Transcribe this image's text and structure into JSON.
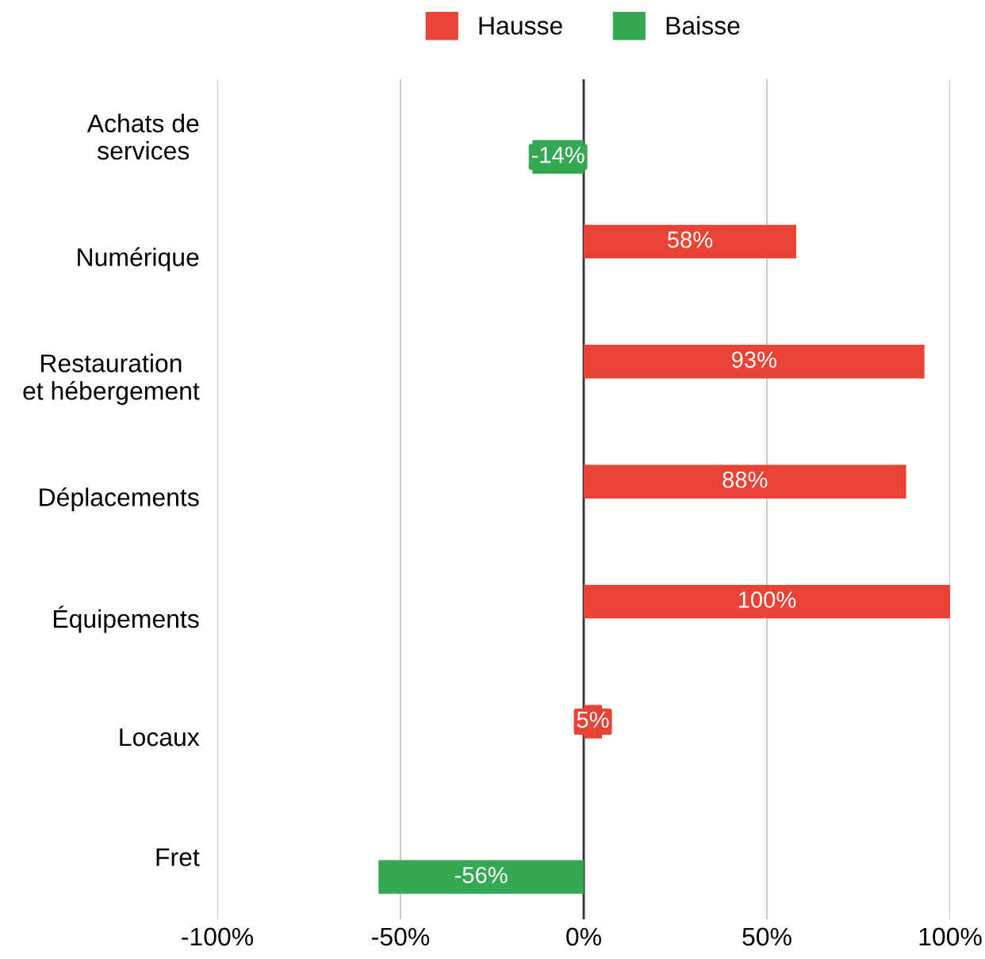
{
  "chart_data": {
    "type": "bar",
    "orientation": "horizontal",
    "categories": [
      "Achats de services",
      "Numérique",
      "Restauration et hébergement",
      "Déplacements",
      "Équipements",
      "Locaux",
      "Fret"
    ],
    "series": [
      {
        "name": "Hausse",
        "color": "#ea4335",
        "values": [
          null,
          58,
          93,
          88,
          100,
          5,
          null
        ],
        "value_labels": [
          null,
          "58%",
          "93%",
          "88%",
          "100%",
          "5%",
          null
        ]
      },
      {
        "name": "Baisse",
        "color": "#34a853",
        "values": [
          -14,
          null,
          null,
          null,
          null,
          null,
          -56
        ],
        "value_labels": [
          "-14%",
          null,
          null,
          null,
          null,
          null,
          "-56%"
        ]
      }
    ],
    "xlim": [
      -100,
      100
    ],
    "xticks": [
      {
        "value": -100,
        "label": "-100%"
      },
      {
        "value": -50,
        "label": "-50%"
      },
      {
        "value": 0,
        "label": "0%"
      },
      {
        "value": 50,
        "label": "50%"
      },
      {
        "value": 100,
        "label": "100%"
      }
    ],
    "grid": "x",
    "legend": "top"
  }
}
